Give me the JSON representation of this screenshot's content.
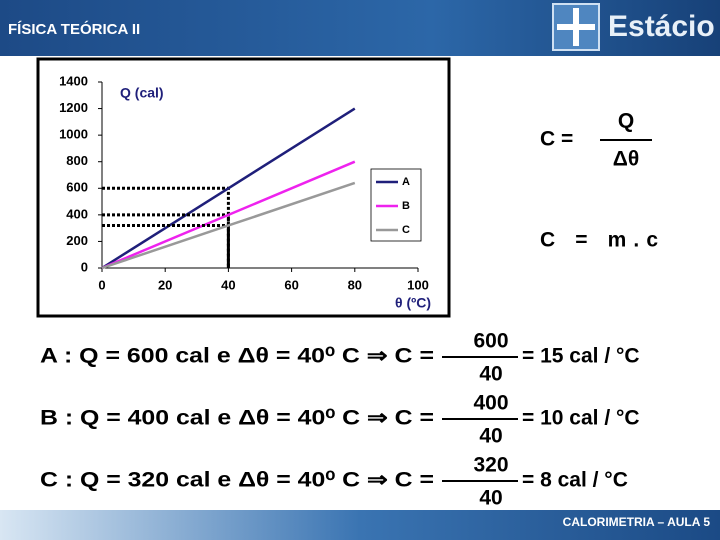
{
  "header": {
    "title": "FÍSICA TEÓRICA II",
    "logo": "Estácio"
  },
  "chart_data": {
    "type": "line",
    "x": [
      0,
      40,
      80
    ],
    "series": [
      {
        "name": "A",
        "color": "#1f1f7a",
        "values": [
          0,
          600,
          1200
        ]
      },
      {
        "name": "B",
        "color": "#ee22ee",
        "values": [
          0,
          400,
          800
        ]
      },
      {
        "name": "C",
        "color": "#999999",
        "values": [
          0,
          320,
          640
        ]
      }
    ],
    "xlim": [
      0,
      100
    ],
    "xticks": [
      0,
      20,
      40,
      60,
      80,
      100
    ],
    "ylim": [
      0,
      1400
    ],
    "yticks": [
      0,
      200,
      400,
      600,
      800,
      1000,
      1200,
      1400
    ],
    "ylabel": "Q (cal)",
    "xlabel": "θ (ºC)",
    "legend": "right"
  },
  "side_formulas": {
    "capacity": {
      "lhs": "C =",
      "num": "Q",
      "den": "Δθ"
    },
    "mass": "C = m.c"
  },
  "formulas": [
    {
      "lhs": "A : Q = 600 cal  e  Δθ = 40⁰ C ⇒ C =",
      "num": "600",
      "den": "40",
      "rhs": "= 15 cal / °C"
    },
    {
      "lhs": "B : Q = 400 cal  e  Δθ = 40⁰ C ⇒ C =",
      "num": "400",
      "den": "40",
      "rhs": "= 10 cal / °C"
    },
    {
      "lhs": "C : Q = 320 cal  e  Δθ = 40⁰ C ⇒ C =",
      "num": "320",
      "den": "40",
      "rhs": "= 8 cal / °C"
    }
  ],
  "footer": "CALORIMETRIA – AULA 5"
}
